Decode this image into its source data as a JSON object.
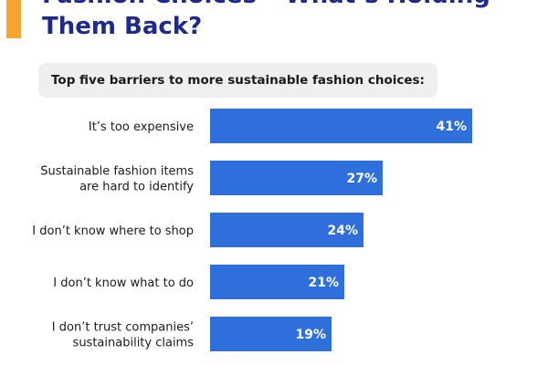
{
  "header": {
    "title_line1": "Fashion Choices – What’s Holding",
    "title_line2": "Them Back?",
    "accent_color": "#f5a530",
    "title_color": "#1e2a8a"
  },
  "chart_data": {
    "type": "bar",
    "orientation": "horizontal",
    "title": "Top five barriers to more sustainable fashion choices:",
    "categories": [
      [
        "It’s too expensive"
      ],
      [
        "Sustainable fashion items",
        "are hard to identify"
      ],
      [
        "I don’t know where to shop"
      ],
      [
        "I don’t know what to do"
      ],
      [
        "I don’t trust companies’",
        "sustainability claims"
      ]
    ],
    "values": [
      41,
      27,
      24,
      21,
      19
    ],
    "value_labels": [
      "41%",
      "27%",
      "24%",
      "21%",
      "19%"
    ],
    "unit": "%",
    "bar_color": "#2f6fdc",
    "grid": false,
    "legend": "none"
  }
}
